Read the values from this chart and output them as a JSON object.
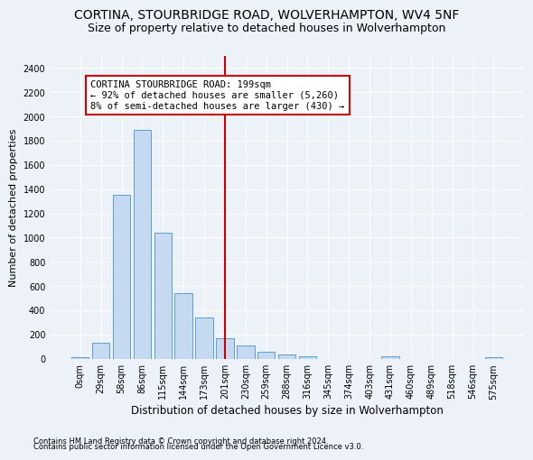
{
  "title": "CORTINA, STOURBRIDGE ROAD, WOLVERHAMPTON, WV4 5NF",
  "subtitle": "Size of property relative to detached houses in Wolverhampton",
  "xlabel": "Distribution of detached houses by size in Wolverhampton",
  "ylabel": "Number of detached properties",
  "footnote1": "Contains HM Land Registry data © Crown copyright and database right 2024.",
  "footnote2": "Contains public sector information licensed under the Open Government Licence v3.0.",
  "bar_labels": [
    "0sqm",
    "29sqm",
    "58sqm",
    "86sqm",
    "115sqm",
    "144sqm",
    "173sqm",
    "201sqm",
    "230sqm",
    "259sqm",
    "288sqm",
    "316sqm",
    "345sqm",
    "374sqm",
    "403sqm",
    "431sqm",
    "460sqm",
    "489sqm",
    "518sqm",
    "546sqm",
    "575sqm"
  ],
  "bar_values": [
    15,
    130,
    1350,
    1890,
    1040,
    540,
    340,
    170,
    110,
    60,
    35,
    20,
    0,
    0,
    0,
    20,
    0,
    0,
    0,
    0,
    15
  ],
  "bar_color": "#c5d9f0",
  "bar_edge_color": "#5a9fd4",
  "vline_x_index": 7,
  "vline_color": "#cc0000",
  "annotation_text": "CORTINA STOURBRIDGE ROAD: 199sqm\n← 92% of detached houses are smaller (5,260)\n8% of semi-detached houses are larger (430) →",
  "annotation_box_color": "#cc0000",
  "ylim": [
    0,
    2500
  ],
  "yticks": [
    0,
    200,
    400,
    600,
    800,
    1000,
    1200,
    1400,
    1600,
    1800,
    2000,
    2200,
    2400
  ],
  "bg_color": "#edf2f9",
  "plot_bg_color": "#edf2f9",
  "grid_color": "#ffffff",
  "title_fontsize": 10,
  "subtitle_fontsize": 9,
  "xlabel_fontsize": 8.5,
  "ylabel_fontsize": 8,
  "tick_fontsize": 7,
  "annotation_fontsize": 7.5,
  "footnote_fontsize": 6
}
